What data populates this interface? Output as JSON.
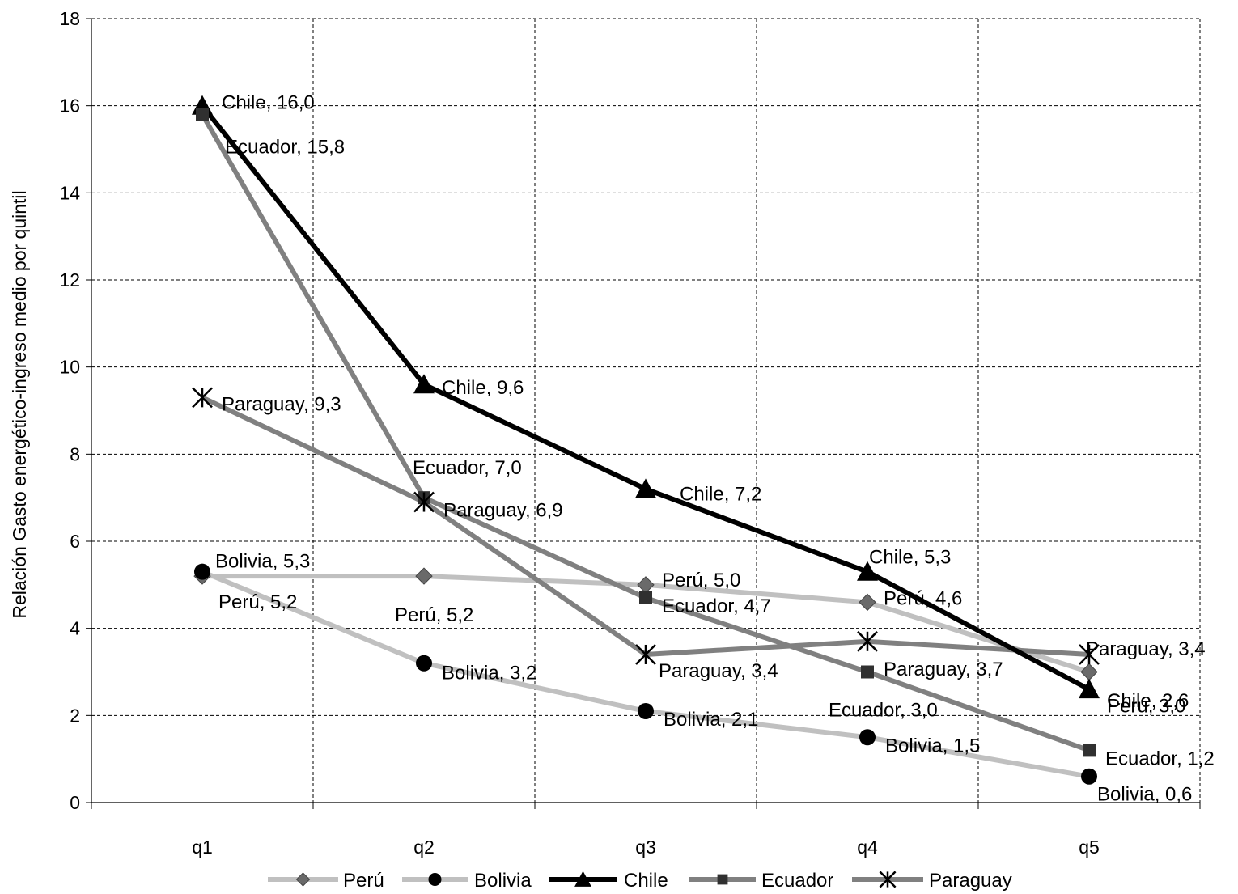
{
  "chart_data": {
    "type": "line",
    "title": "",
    "xlabel": "",
    "ylabel": "Relación Gasto energético-ingreso medio por quintil",
    "categories": [
      "q1",
      "q2",
      "q3",
      "q4",
      "q5"
    ],
    "ylim": [
      0,
      18
    ],
    "yticks": [
      "0",
      "2",
      "4",
      "6",
      "8",
      "10",
      "12",
      "14",
      "16",
      "18"
    ],
    "grid": true,
    "legend_position": "bottom",
    "series": [
      {
        "name": "Perú",
        "values": [
          5.2,
          5.2,
          5.0,
          4.6,
          3.0
        ],
        "color": "#c0c0c0",
        "marker": "diamond",
        "marker_color": "#6a6a6a",
        "labels": [
          "Perú, 5,2",
          "Perú, 5,2",
          "Perú, 5,0",
          "Perú, 4,6",
          "Perú, 3,0"
        ]
      },
      {
        "name": "Bolivia",
        "values": [
          5.3,
          3.2,
          2.1,
          1.5,
          0.6
        ],
        "color": "#c0c0c0",
        "marker": "circle",
        "marker_color": "#000000",
        "labels": [
          "Bolivia, 5,3",
          "Bolivia, 3,2",
          "Bolivia, 2,1",
          "Bolivia, 1,5",
          "Bolivia, 0,6"
        ]
      },
      {
        "name": "Chile",
        "values": [
          16.0,
          9.6,
          7.2,
          5.3,
          2.6
        ],
        "color": "#000000",
        "marker": "triangle",
        "marker_color": "#000000",
        "labels": [
          "Chile, 16,0",
          "Chile, 9,6",
          "Chile, 7,2",
          "Chile, 5,3",
          "Chile, 2,6"
        ]
      },
      {
        "name": "Ecuador",
        "values": [
          15.8,
          7.0,
          4.7,
          3.0,
          1.2
        ],
        "color": "#808080",
        "marker": "square",
        "marker_color": "#303030",
        "labels": [
          "Ecuador, 15,8",
          "Ecuador, 7,0",
          "Ecuador, 4,7",
          "Ecuador, 3,0",
          "Ecuador, 1,2"
        ]
      },
      {
        "name": "Paraguay",
        "values": [
          9.3,
          6.9,
          3.4,
          3.7,
          3.4
        ],
        "color": "#808080",
        "marker": "asterisk",
        "marker_color": "#000000",
        "labels": [
          "Paraguay, 9,3",
          "Paraguay, 6,9",
          "Paraguay, 3,4",
          "Paraguay, 3,7",
          "Paraguay, 3,4"
        ]
      }
    ]
  }
}
